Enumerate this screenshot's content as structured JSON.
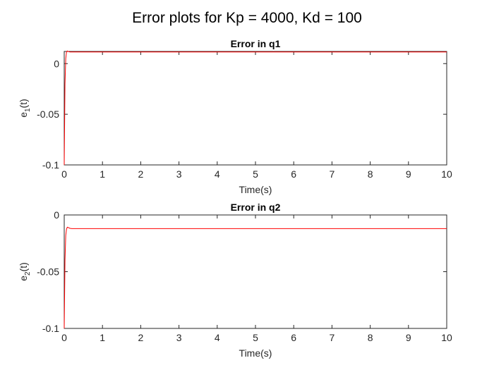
{
  "figure": {
    "title": "Error plots for Kp = 4000, Kd = 100"
  },
  "chart_data": [
    {
      "type": "line",
      "title": "Error in q1",
      "xlabel": "Time(s)",
      "ylabel": "e",
      "ylabel_sub": "1",
      "ylabel_tail": "(t)",
      "xlim": [
        0,
        10
      ],
      "ylim": [
        -0.1,
        0.012
      ],
      "xticks": [
        0,
        1,
        2,
        3,
        4,
        5,
        6,
        7,
        8,
        9,
        10
      ],
      "xtick_labels": [
        "0",
        "1",
        "2",
        "3",
        "4",
        "5",
        "6",
        "7",
        "8",
        "9",
        "10"
      ],
      "yticks": [
        -0.1,
        -0.05,
        0
      ],
      "ytick_labels": [
        "-0.1",
        "-0.05",
        "0"
      ],
      "grid": false,
      "series": [
        {
          "color": "#ff0000",
          "x": [
            0,
            0.02,
            0.04,
            0.06,
            0.08,
            0.1,
            0.15,
            0.2,
            1,
            5,
            10
          ],
          "y": [
            -0.1,
            -0.02,
            0.005,
            0.0115,
            0.0125,
            0.012,
            0.0115,
            0.0115,
            0.0115,
            0.0115,
            0.0115
          ]
        }
      ]
    },
    {
      "type": "line",
      "title": "Error in q2",
      "xlabel": "Time(s)",
      "ylabel": "e",
      "ylabel_sub": "2",
      "ylabel_tail": "(t)",
      "xlim": [
        0,
        10
      ],
      "ylim": [
        -0.1,
        0
      ],
      "xticks": [
        0,
        1,
        2,
        3,
        4,
        5,
        6,
        7,
        8,
        9,
        10
      ],
      "xtick_labels": [
        "0",
        "1",
        "2",
        "3",
        "4",
        "5",
        "6",
        "7",
        "8",
        "9",
        "10"
      ],
      "yticks": [
        -0.1,
        -0.05,
        0
      ],
      "ytick_labels": [
        "-0.1",
        "-0.05",
        "0"
      ],
      "grid": false,
      "series": [
        {
          "color": "#ff0000",
          "x": [
            0,
            0.02,
            0.04,
            0.06,
            0.08,
            0.1,
            0.15,
            0.2,
            1,
            5,
            10
          ],
          "y": [
            -0.1,
            -0.04,
            -0.018,
            -0.0125,
            -0.0108,
            -0.011,
            -0.0118,
            -0.012,
            -0.012,
            -0.012,
            -0.012
          ]
        }
      ]
    }
  ]
}
